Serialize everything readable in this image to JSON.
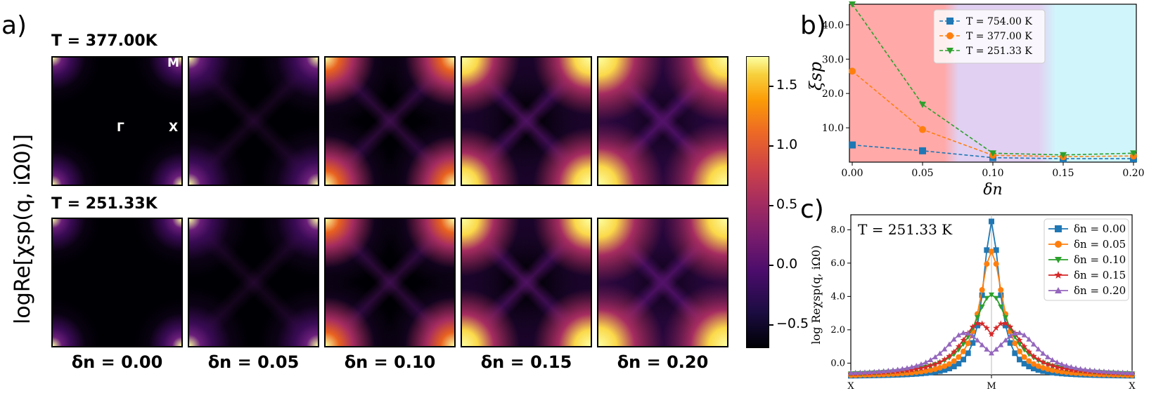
{
  "colors": {
    "inferno_low": "#000004",
    "inferno_high": "#fcffa4",
    "series_blue": "#1f77b4",
    "series_orange": "#ff7f0e",
    "series_green": "#2ca02c",
    "series_red": "#d62728",
    "series_purple": "#9467bd",
    "band_red": "#ff9a9a",
    "band_purple": "#dcc8f0",
    "band_cyan": "#c8f4fb"
  },
  "panel_a": {
    "letter": "a)",
    "ylabel": "logRe[χsp(q, iΩ0)]",
    "row_titles": [
      "T = 377.00K",
      "T = 251.33K"
    ],
    "col_labels": [
      "δn = 0.00",
      "δn = 0.05",
      "δn = 0.10",
      "δn = 0.15",
      "δn = 0.20"
    ],
    "hs_points": {
      "M": "M",
      "Gamma": "Γ",
      "X": "X"
    },
    "colorbar": {
      "ticks": [
        "1.5",
        "1.0",
        "0.5",
        "0.0",
        "−0.5"
      ],
      "tick_values": [
        1.5,
        1.0,
        0.5,
        0.0,
        -0.5
      ],
      "range": [
        -0.7,
        1.75
      ],
      "colormap": "inferno"
    }
  },
  "chart_data": [
    {
      "type": "line",
      "panel": "b",
      "letter": "b)",
      "xlabel": "δn",
      "ylabel": "ξsp",
      "x": [
        0.0,
        0.05,
        0.1,
        0.15,
        0.2
      ],
      "xticks": [
        "0.00",
        "0.05",
        "0.10",
        "0.15",
        "0.20"
      ],
      "yticks": [
        "10.0",
        "20.0",
        "30.0",
        "40.0"
      ],
      "xlim": [
        -0.002,
        0.202
      ],
      "ylim": [
        0,
        46
      ],
      "legend_position": "upper-right",
      "series": [
        {
          "name": "T = 754.00 K",
          "marker": "square",
          "color": "#1f77b4",
          "values": [
            5.0,
            3.3,
            1.3,
            1.0,
            1.0
          ]
        },
        {
          "name": "T = 377.00 K",
          "marker": "circle",
          "color": "#ff7f0e",
          "values": [
            26.5,
            9.5,
            2.0,
            1.6,
            1.8
          ]
        },
        {
          "name": "T = 251.33 K",
          "marker": "triangle-down",
          "color": "#2ca02c",
          "values": [
            46.0,
            16.8,
            2.6,
            2.1,
            2.6
          ]
        }
      ],
      "background_bands": [
        "red",
        "purple",
        "cyan"
      ]
    },
    {
      "type": "line",
      "panel": "c",
      "letter": "c)",
      "annotation": "T = 251.33 K",
      "ylabel": "log Reχsp(q, iΩ0)",
      "xticks": [
        "X",
        "M",
        "X"
      ],
      "yticks": [
        "0.0",
        "2.0",
        "4.0",
        "6.0",
        "8.0"
      ],
      "xlim": [
        -1,
        1
      ],
      "ylim": [
        -0.7,
        8.9
      ],
      "legend_position": "upper-right",
      "series": [
        {
          "name": "δn = 0.00",
          "marker": "square",
          "color": "#1f77b4",
          "peak": 8.5,
          "offset": 0.0,
          "width": 0.07,
          "floor": -0.8
        },
        {
          "name": "δn = 0.05",
          "marker": "circle",
          "color": "#ff7f0e",
          "peak": 6.7,
          "offset": 0.0,
          "width": 0.1,
          "floor": -0.8
        },
        {
          "name": "δn = 0.10",
          "marker": "triangle-down",
          "color": "#2ca02c",
          "peak": 4.1,
          "offset": 0.0,
          "width": 0.16,
          "floor": -0.75
        },
        {
          "name": "δn = 0.15",
          "marker": "star",
          "color": "#d62728",
          "peak": 2.45,
          "offset": 0.09,
          "width": 0.16,
          "floor": -0.72
        },
        {
          "name": "δn = 0.20",
          "marker": "triangle-up",
          "color": "#9467bd",
          "peak": 1.9,
          "offset": 0.19,
          "width": 0.18,
          "floor": -0.7
        }
      ]
    }
  ]
}
